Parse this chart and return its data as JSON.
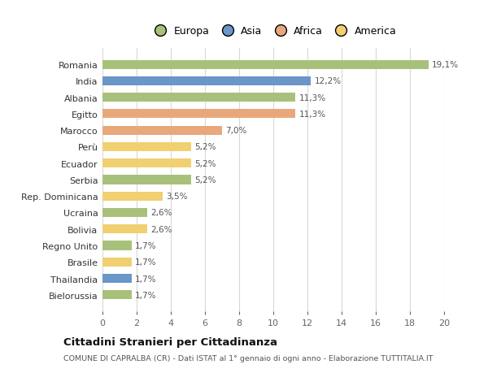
{
  "countries": [
    "Romania",
    "India",
    "Albania",
    "Egitto",
    "Marocco",
    "Perù",
    "Ecuador",
    "Serbia",
    "Rep. Dominicana",
    "Ucraina",
    "Bolivia",
    "Regno Unito",
    "Brasile",
    "Thailandia",
    "Bielorussia"
  ],
  "values": [
    19.1,
    12.2,
    11.3,
    11.3,
    7.0,
    5.2,
    5.2,
    5.2,
    3.5,
    2.6,
    2.6,
    1.7,
    1.7,
    1.7,
    1.7
  ],
  "labels": [
    "19,1%",
    "12,2%",
    "11,3%",
    "11,3%",
    "7,0%",
    "5,2%",
    "5,2%",
    "5,2%",
    "3,5%",
    "2,6%",
    "2,6%",
    "1,7%",
    "1,7%",
    "1,7%",
    "1,7%"
  ],
  "colors": [
    "#a8c17a",
    "#6a96c8",
    "#a8c17a",
    "#e8a87c",
    "#e8a87c",
    "#f0d070",
    "#f0d070",
    "#a8c17a",
    "#f0d070",
    "#a8c17a",
    "#f0d070",
    "#a8c17a",
    "#f0d070",
    "#6a96c8",
    "#a8c17a"
  ],
  "legend_labels": [
    "Europa",
    "Asia",
    "Africa",
    "America"
  ],
  "legend_colors": [
    "#a8c17a",
    "#6a96c8",
    "#e8a87c",
    "#f0d070"
  ],
  "xlim": [
    0,
    20
  ],
  "xticks": [
    0,
    2,
    4,
    6,
    8,
    10,
    12,
    14,
    16,
    18,
    20
  ],
  "title": "Cittadini Stranieri per Cittadinanza",
  "subtitle": "COMUNE DI CAPRALBA (CR) - Dati ISTAT al 1° gennaio di ogni anno - Elaborazione TUTTITALIA.IT",
  "bg_color": "#ffffff",
  "grid_color": "#d8d8d8"
}
